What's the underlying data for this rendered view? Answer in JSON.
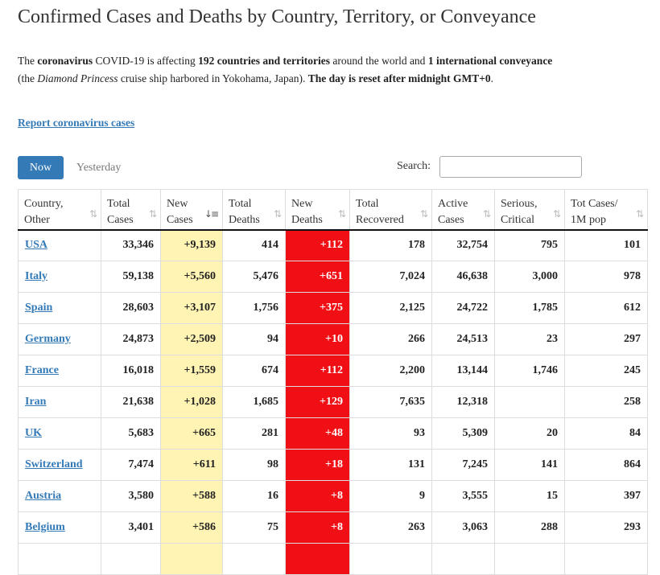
{
  "page": {
    "title": "Confirmed Cases and Deaths by Country, Territory, or Conveyance",
    "intro": {
      "p1": "The ",
      "b1": "coronavirus",
      "p2": " COVID-19 is affecting ",
      "b2": "192 countries and territories",
      "p3": " around the world and ",
      "b3": "1 international conveyance",
      "p4": " (the ",
      "i1": "Diamond Princess",
      "p5": " cruise ship harbored in Yokohama, Japan). ",
      "b4": "The day is reset after midnight GMT+0",
      "p6": "."
    },
    "report_link": "Report coronavirus cases"
  },
  "controls": {
    "tab_now": "Now",
    "tab_yesterday": "Yesterday",
    "search_label": "Search:",
    "search_value": ""
  },
  "colors": {
    "accent": "#337ab7",
    "new_cases_bg": "#fff4b3",
    "new_deaths_bg": "#ef0f14"
  },
  "table": {
    "headers": [
      {
        "l1": "Country,",
        "l2": "Other"
      },
      {
        "l1": "Total",
        "l2": "Cases"
      },
      {
        "l1": "New",
        "l2": "Cases"
      },
      {
        "l1": "Total",
        "l2": "Deaths"
      },
      {
        "l1": "New",
        "l2": "Deaths"
      },
      {
        "l1": "Total",
        "l2": "Recovered"
      },
      {
        "l1": "Active",
        "l2": "Cases"
      },
      {
        "l1": "Serious,",
        "l2": "Critical"
      },
      {
        "l1": "Tot Cases/",
        "l2": "1M pop"
      }
    ],
    "sort_icon": "⇅",
    "sort_active_icon": "↓≡",
    "rows": [
      {
        "country": "USA",
        "total_cases": "33,346",
        "new_cases": "+9,139",
        "total_deaths": "414",
        "new_deaths": "+112",
        "total_recovered": "178",
        "active_cases": "32,754",
        "serious": "795",
        "per_million": "101"
      },
      {
        "country": "Italy",
        "total_cases": "59,138",
        "new_cases": "+5,560",
        "total_deaths": "5,476",
        "new_deaths": "+651",
        "total_recovered": "7,024",
        "active_cases": "46,638",
        "serious": "3,000",
        "per_million": "978"
      },
      {
        "country": "Spain",
        "total_cases": "28,603",
        "new_cases": "+3,107",
        "total_deaths": "1,756",
        "new_deaths": "+375",
        "total_recovered": "2,125",
        "active_cases": "24,722",
        "serious": "1,785",
        "per_million": "612"
      },
      {
        "country": "Germany",
        "total_cases": "24,873",
        "new_cases": "+2,509",
        "total_deaths": "94",
        "new_deaths": "+10",
        "total_recovered": "266",
        "active_cases": "24,513",
        "serious": "23",
        "per_million": "297"
      },
      {
        "country": "France",
        "total_cases": "16,018",
        "new_cases": "+1,559",
        "total_deaths": "674",
        "new_deaths": "+112",
        "total_recovered": "2,200",
        "active_cases": "13,144",
        "serious": "1,746",
        "per_million": "245"
      },
      {
        "country": "Iran",
        "total_cases": "21,638",
        "new_cases": "+1,028",
        "total_deaths": "1,685",
        "new_deaths": "+129",
        "total_recovered": "7,635",
        "active_cases": "12,318",
        "serious": "",
        "per_million": "258"
      },
      {
        "country": "UK",
        "total_cases": "5,683",
        "new_cases": "+665",
        "total_deaths": "281",
        "new_deaths": "+48",
        "total_recovered": "93",
        "active_cases": "5,309",
        "serious": "20",
        "per_million": "84"
      },
      {
        "country": "Switzerland",
        "total_cases": "7,474",
        "new_cases": "+611",
        "total_deaths": "98",
        "new_deaths": "+18",
        "total_recovered": "131",
        "active_cases": "7,245",
        "serious": "141",
        "per_million": "864"
      },
      {
        "country": "Austria",
        "total_cases": "3,580",
        "new_cases": "+588",
        "total_deaths": "16",
        "new_deaths": "+8",
        "total_recovered": "9",
        "active_cases": "3,555",
        "serious": "15",
        "per_million": "397"
      },
      {
        "country": "Belgium",
        "total_cases": "3,401",
        "new_cases": "+586",
        "total_deaths": "75",
        "new_deaths": "+8",
        "total_recovered": "263",
        "active_cases": "3,063",
        "serious": "288",
        "per_million": "293"
      },
      {
        "country": "",
        "total_cases": "",
        "new_cases": "",
        "total_deaths": "",
        "new_deaths": "",
        "total_recovered": "",
        "active_cases": "",
        "serious": "",
        "per_million": ""
      }
    ]
  }
}
